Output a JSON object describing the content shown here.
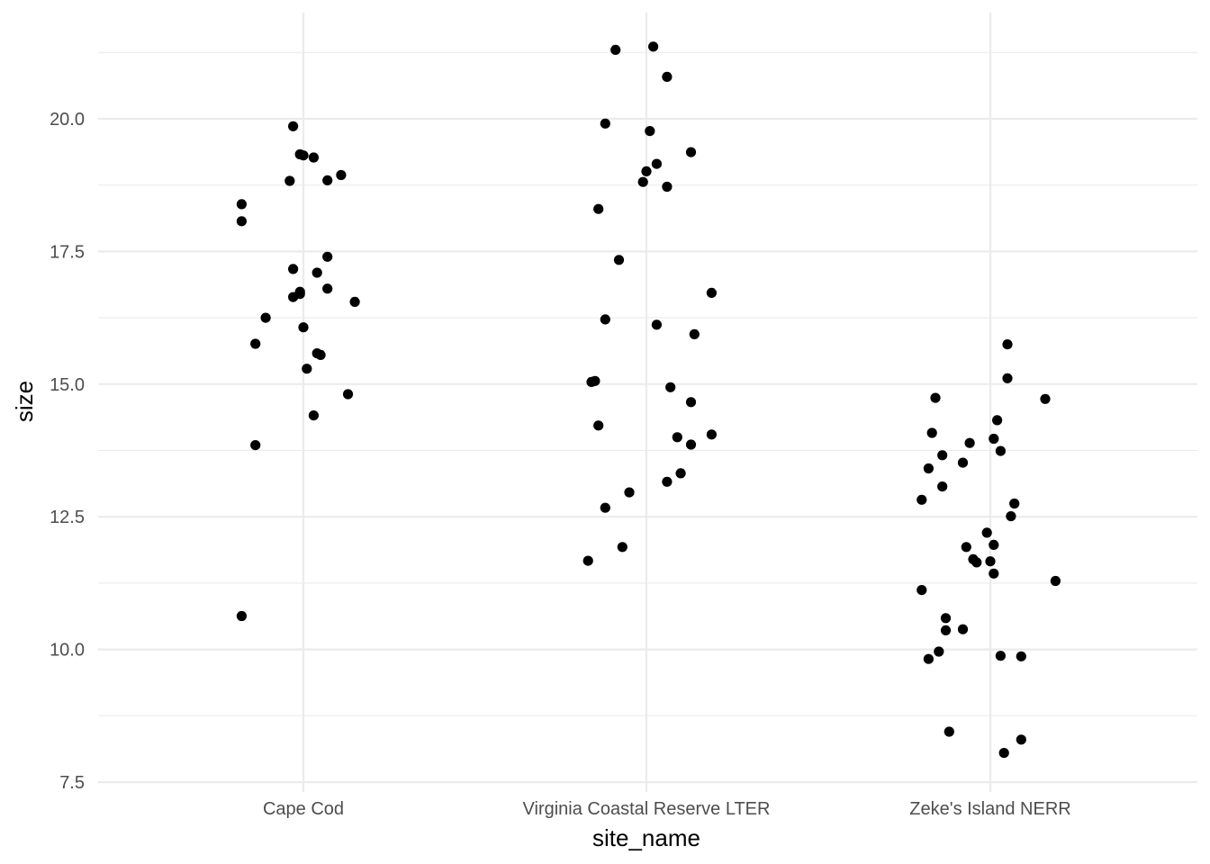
{
  "chart_data": {
    "type": "scatter",
    "subtype": "jitter",
    "title": "",
    "xlabel": "site_name",
    "ylabel": "size",
    "categories": [
      "Cape Cod",
      "Virginia Coastal Reserve LTER",
      "Zeke's Island NERR"
    ],
    "ylim": [
      7.4,
      21.6
    ],
    "yticks": [
      "7.5",
      "10.0",
      "12.5",
      "15.0",
      "17.5",
      "20.0"
    ],
    "grid": true,
    "legend": "none",
    "point_color": "#000000",
    "series": [
      {
        "category": "Cape Cod",
        "points": [
          {
            "jitter": -0.18,
            "y": 18.39
          },
          {
            "jitter": -0.18,
            "y": 18.07
          },
          {
            "jitter": -0.03,
            "y": 19.86
          },
          {
            "jitter": -0.01,
            "y": 19.33
          },
          {
            "jitter": 0.0,
            "y": 19.31
          },
          {
            "jitter": 0.03,
            "y": 19.27
          },
          {
            "jitter": -0.04,
            "y": 18.83
          },
          {
            "jitter": 0.07,
            "y": 18.84
          },
          {
            "jitter": 0.11,
            "y": 18.94
          },
          {
            "jitter": -0.03,
            "y": 17.17
          },
          {
            "jitter": 0.04,
            "y": 17.1
          },
          {
            "jitter": 0.07,
            "y": 17.4
          },
          {
            "jitter": -0.03,
            "y": 16.64
          },
          {
            "jitter": -0.01,
            "y": 16.7
          },
          {
            "jitter": -0.01,
            "y": 16.74
          },
          {
            "jitter": 0.07,
            "y": 16.8
          },
          {
            "jitter": 0.15,
            "y": 16.55
          },
          {
            "jitter": -0.11,
            "y": 16.25
          },
          {
            "jitter": 0.0,
            "y": 16.07
          },
          {
            "jitter": -0.14,
            "y": 15.76
          },
          {
            "jitter": 0.04,
            "y": 15.58
          },
          {
            "jitter": 0.05,
            "y": 15.55
          },
          {
            "jitter": 0.01,
            "y": 15.29
          },
          {
            "jitter": 0.13,
            "y": 14.81
          },
          {
            "jitter": 0.03,
            "y": 14.41
          },
          {
            "jitter": -0.14,
            "y": 13.85
          },
          {
            "jitter": -0.18,
            "y": 10.63
          }
        ]
      },
      {
        "category": "Virginia Coastal Reserve LTER",
        "points": [
          {
            "jitter": -0.09,
            "y": 21.3
          },
          {
            "jitter": 0.02,
            "y": 21.36
          },
          {
            "jitter": 0.06,
            "y": 20.79
          },
          {
            "jitter": -0.12,
            "y": 19.91
          },
          {
            "jitter": 0.01,
            "y": 19.77
          },
          {
            "jitter": 0.13,
            "y": 19.37
          },
          {
            "jitter": 0.03,
            "y": 19.15
          },
          {
            "jitter": 0.0,
            "y": 19.01
          },
          {
            "jitter": -0.01,
            "y": 18.81
          },
          {
            "jitter": 0.06,
            "y": 18.72
          },
          {
            "jitter": -0.14,
            "y": 18.3
          },
          {
            "jitter": -0.08,
            "y": 17.34
          },
          {
            "jitter": 0.19,
            "y": 16.72
          },
          {
            "jitter": -0.12,
            "y": 16.22
          },
          {
            "jitter": 0.03,
            "y": 16.12
          },
          {
            "jitter": 0.14,
            "y": 15.94
          },
          {
            "jitter": -0.16,
            "y": 15.04
          },
          {
            "jitter": -0.15,
            "y": 15.06
          },
          {
            "jitter": 0.07,
            "y": 14.94
          },
          {
            "jitter": 0.13,
            "y": 14.66
          },
          {
            "jitter": -0.14,
            "y": 14.22
          },
          {
            "jitter": 0.19,
            "y": 14.05
          },
          {
            "jitter": 0.09,
            "y": 14.0
          },
          {
            "jitter": 0.13,
            "y": 13.86
          },
          {
            "jitter": 0.1,
            "y": 13.32
          },
          {
            "jitter": 0.06,
            "y": 13.16
          },
          {
            "jitter": -0.05,
            "y": 12.96
          },
          {
            "jitter": -0.12,
            "y": 12.67
          },
          {
            "jitter": -0.07,
            "y": 11.93
          },
          {
            "jitter": -0.17,
            "y": 11.67
          }
        ]
      },
      {
        "category": "Zeke's Island NERR",
        "points": [
          {
            "jitter": 0.05,
            "y": 15.75
          },
          {
            "jitter": 0.05,
            "y": 15.11
          },
          {
            "jitter": -0.16,
            "y": 14.74
          },
          {
            "jitter": 0.16,
            "y": 14.72
          },
          {
            "jitter": 0.02,
            "y": 14.32
          },
          {
            "jitter": -0.17,
            "y": 14.08
          },
          {
            "jitter": 0.01,
            "y": 13.97
          },
          {
            "jitter": -0.06,
            "y": 13.89
          },
          {
            "jitter": 0.03,
            "y": 13.74
          },
          {
            "jitter": -0.14,
            "y": 13.66
          },
          {
            "jitter": -0.08,
            "y": 13.52
          },
          {
            "jitter": -0.18,
            "y": 13.41
          },
          {
            "jitter": -0.14,
            "y": 13.07
          },
          {
            "jitter": -0.2,
            "y": 12.82
          },
          {
            "jitter": 0.07,
            "y": 12.75
          },
          {
            "jitter": 0.06,
            "y": 12.51
          },
          {
            "jitter": -0.01,
            "y": 12.2
          },
          {
            "jitter": 0.01,
            "y": 11.97
          },
          {
            "jitter": -0.07,
            "y": 11.93
          },
          {
            "jitter": -0.05,
            "y": 11.7
          },
          {
            "jitter": -0.04,
            "y": 11.64
          },
          {
            "jitter": 0.0,
            "y": 11.66
          },
          {
            "jitter": 0.01,
            "y": 11.43
          },
          {
            "jitter": 0.19,
            "y": 11.29
          },
          {
            "jitter": -0.2,
            "y": 11.12
          },
          {
            "jitter": -0.13,
            "y": 10.59
          },
          {
            "jitter": -0.13,
            "y": 10.36
          },
          {
            "jitter": -0.08,
            "y": 10.38
          },
          {
            "jitter": -0.15,
            "y": 9.96
          },
          {
            "jitter": 0.03,
            "y": 9.88
          },
          {
            "jitter": 0.09,
            "y": 9.87
          },
          {
            "jitter": -0.18,
            "y": 9.82
          },
          {
            "jitter": -0.12,
            "y": 8.45
          },
          {
            "jitter": 0.09,
            "y": 8.3
          },
          {
            "jitter": 0.04,
            "y": 8.05
          }
        ]
      }
    ]
  }
}
